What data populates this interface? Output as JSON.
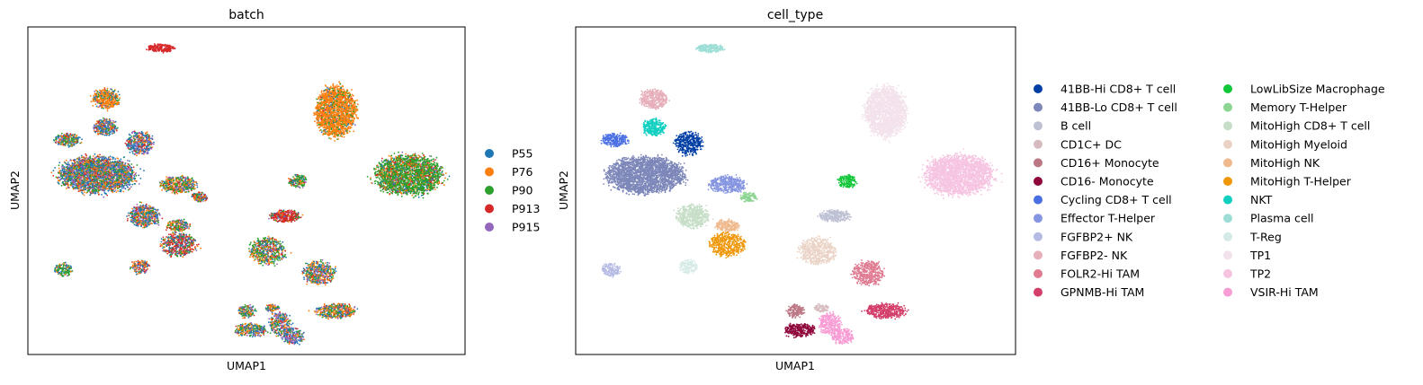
{
  "chart_data": [
    {
      "type": "scatter",
      "title": "batch",
      "xlabel": "UMAP1",
      "ylabel": "UMAP2",
      "legend_position": "right",
      "series": [
        {
          "name": "P55",
          "color": "#1f77b4"
        },
        {
          "name": "P76",
          "color": "#ff7f0e"
        },
        {
          "name": "P90",
          "color": "#2ca02c"
        },
        {
          "name": "P913",
          "color": "#d62728"
        },
        {
          "name": "P915",
          "color": "#9467bd"
        }
      ],
      "clusters": [
        {
          "x": 0.3,
          "y": 0.95,
          "rx": 0.03,
          "ry": 0.012,
          "n": 220,
          "mix": [
            0,
            0,
            0,
            1,
            0
          ]
        },
        {
          "x": 0.17,
          "y": 0.79,
          "rx": 0.03,
          "ry": 0.03,
          "n": 400,
          "mix": [
            0.15,
            0.6,
            0.15,
            0.05,
            0.05
          ]
        },
        {
          "x": 0.17,
          "y": 0.7,
          "rx": 0.025,
          "ry": 0.025,
          "n": 300,
          "mix": [
            0.35,
            0.25,
            0.15,
            0.1,
            0.15
          ]
        },
        {
          "x": 0.08,
          "y": 0.66,
          "rx": 0.03,
          "ry": 0.02,
          "n": 250,
          "mix": [
            0.3,
            0.2,
            0.3,
            0.1,
            0.1
          ]
        },
        {
          "x": 0.25,
          "y": 0.65,
          "rx": 0.03,
          "ry": 0.035,
          "n": 400,
          "mix": [
            0.4,
            0.15,
            0.1,
            0.15,
            0.2
          ]
        },
        {
          "x": 0.15,
          "y": 0.55,
          "rx": 0.085,
          "ry": 0.055,
          "n": 2500,
          "mix": [
            0.35,
            0.2,
            0.2,
            0.1,
            0.15
          ]
        },
        {
          "x": 0.34,
          "y": 0.52,
          "rx": 0.04,
          "ry": 0.025,
          "n": 450,
          "mix": [
            0.2,
            0.3,
            0.3,
            0.1,
            0.1
          ]
        },
        {
          "x": 0.39,
          "y": 0.48,
          "rx": 0.018,
          "ry": 0.015,
          "n": 120,
          "mix": [
            0.2,
            0.2,
            0.2,
            0.3,
            0.1
          ]
        },
        {
          "x": 0.26,
          "y": 0.42,
          "rx": 0.035,
          "ry": 0.035,
          "n": 500,
          "mix": [
            0.35,
            0.25,
            0.15,
            0.1,
            0.15
          ]
        },
        {
          "x": 0.34,
          "y": 0.39,
          "rx": 0.025,
          "ry": 0.018,
          "n": 200,
          "mix": [
            0.2,
            0.3,
            0.3,
            0.1,
            0.1
          ]
        },
        {
          "x": 0.34,
          "y": 0.33,
          "rx": 0.04,
          "ry": 0.035,
          "n": 500,
          "mix": [
            0.2,
            0.1,
            0.15,
            0.45,
            0.1
          ]
        },
        {
          "x": 0.25,
          "y": 0.26,
          "rx": 0.02,
          "ry": 0.02,
          "n": 150,
          "mix": [
            0.3,
            0.3,
            0.1,
            0.2,
            0.1
          ]
        },
        {
          "x": 0.07,
          "y": 0.25,
          "rx": 0.02,
          "ry": 0.02,
          "n": 150,
          "mix": [
            0.2,
            0.2,
            0.5,
            0.05,
            0.05
          ]
        },
        {
          "x": 0.71,
          "y": 0.75,
          "rx": 0.045,
          "ry": 0.075,
          "n": 1800,
          "mix": [
            0.05,
            0.8,
            0.12,
            0.02,
            0.01
          ]
        },
        {
          "x": 0.88,
          "y": 0.55,
          "rx": 0.075,
          "ry": 0.06,
          "n": 2200,
          "mix": [
            0.05,
            0.15,
            0.65,
            0.1,
            0.05
          ]
        },
        {
          "x": 0.62,
          "y": 0.53,
          "rx": 0.02,
          "ry": 0.02,
          "n": 150,
          "mix": [
            0.1,
            0.1,
            0.6,
            0.1,
            0.1
          ]
        },
        {
          "x": 0.59,
          "y": 0.42,
          "rx": 0.035,
          "ry": 0.018,
          "n": 300,
          "mix": [
            0.05,
            0.05,
            0.1,
            0.75,
            0.05
          ]
        },
        {
          "x": 0.55,
          "y": 0.31,
          "rx": 0.04,
          "ry": 0.04,
          "n": 550,
          "mix": [
            0.15,
            0.25,
            0.4,
            0.1,
            0.1
          ]
        },
        {
          "x": 0.67,
          "y": 0.24,
          "rx": 0.035,
          "ry": 0.035,
          "n": 450,
          "mix": [
            0.3,
            0.25,
            0.2,
            0.1,
            0.15
          ]
        },
        {
          "x": 0.71,
          "y": 0.12,
          "rx": 0.045,
          "ry": 0.022,
          "n": 450,
          "mix": [
            0.25,
            0.35,
            0.2,
            0.1,
            0.1
          ]
        },
        {
          "x": 0.5,
          "y": 0.12,
          "rx": 0.02,
          "ry": 0.02,
          "n": 150,
          "mix": [
            0.2,
            0.3,
            0.3,
            0.1,
            0.1
          ]
        },
        {
          "x": 0.58,
          "y": 0.08,
          "rx": 0.025,
          "ry": 0.035,
          "n": 300,
          "mix": [
            0.25,
            0.25,
            0.2,
            0.05,
            0.25
          ]
        },
        {
          "x": 0.51,
          "y": 0.06,
          "rx": 0.035,
          "ry": 0.02,
          "n": 300,
          "mix": [
            0.3,
            0.25,
            0.25,
            0.05,
            0.15
          ]
        },
        {
          "x": 0.61,
          "y": 0.04,
          "rx": 0.025,
          "ry": 0.025,
          "n": 220,
          "mix": [
            0.3,
            0.1,
            0.1,
            0.1,
            0.4
          ]
        },
        {
          "x": 0.56,
          "y": 0.13,
          "rx": 0.015,
          "ry": 0.012,
          "n": 80,
          "mix": [
            0.2,
            0.3,
            0.2,
            0.1,
            0.2
          ]
        }
      ]
    },
    {
      "type": "scatter",
      "title": "cell_type",
      "xlabel": "UMAP1",
      "ylabel": "UMAP2",
      "legend_position": "right",
      "legend_columns": 2,
      "series": [
        {
          "name": "41BB-Hi CD8+ T cell",
          "color": "#023fa5"
        },
        {
          "name": "41BB-Lo CD8+ T cell",
          "color": "#7d87b9"
        },
        {
          "name": "B cell",
          "color": "#bec1d4"
        },
        {
          "name": "CD1C+ DC",
          "color": "#d6bcc0"
        },
        {
          "name": "CD16+ Monocyte",
          "color": "#bb7784"
        },
        {
          "name": "CD16- Monocyte",
          "color": "#8e063b"
        },
        {
          "name": "Cycling CD8+ T cell",
          "color": "#4a6fe3"
        },
        {
          "name": "Effector T-Helper",
          "color": "#8595e1"
        },
        {
          "name": "FGFBP2+ NK",
          "color": "#b5bbe3"
        },
        {
          "name": "FGFBP2- NK",
          "color": "#e6afb9"
        },
        {
          "name": "FOLR2-Hi TAM",
          "color": "#e07b91"
        },
        {
          "name": "GPNMB-Hi TAM",
          "color": "#d33f6a"
        },
        {
          "name": "LowLibSize Macrophage",
          "color": "#11c638"
        },
        {
          "name": "Memory T-Helper",
          "color": "#8dd593"
        },
        {
          "name": "MitoHigh CD8+ T cell",
          "color": "#c6dec7"
        },
        {
          "name": "MitoHigh Myeloid",
          "color": "#ead3c6"
        },
        {
          "name": "MitoHigh NK",
          "color": "#f0b98d"
        },
        {
          "name": "MitoHigh T-Helper",
          "color": "#ef9708"
        },
        {
          "name": "NKT",
          "color": "#0fcfc0"
        },
        {
          "name": "Plasma cell",
          "color": "#9cded6"
        },
        {
          "name": "T-Reg",
          "color": "#d5eae7"
        },
        {
          "name": "TP1",
          "color": "#f3e1eb"
        },
        {
          "name": "TP2",
          "color": "#f6c4e1"
        },
        {
          "name": "VSIR-Hi TAM",
          "color": "#f79cd4"
        }
      ],
      "clusters": [
        {
          "x": 0.3,
          "y": 0.95,
          "rx": 0.03,
          "ry": 0.012,
          "n": 220,
          "cat": 19
        },
        {
          "x": 0.17,
          "y": 0.79,
          "rx": 0.03,
          "ry": 0.03,
          "n": 400,
          "cat": 9
        },
        {
          "x": 0.17,
          "y": 0.7,
          "rx": 0.025,
          "ry": 0.025,
          "n": 300,
          "cat": 18
        },
        {
          "x": 0.08,
          "y": 0.66,
          "rx": 0.03,
          "ry": 0.02,
          "n": 250,
          "cat": 6
        },
        {
          "x": 0.25,
          "y": 0.65,
          "rx": 0.03,
          "ry": 0.035,
          "n": 400,
          "cat": 0
        },
        {
          "x": 0.15,
          "y": 0.55,
          "rx": 0.085,
          "ry": 0.055,
          "n": 2500,
          "cat": 1
        },
        {
          "x": 0.34,
          "y": 0.52,
          "rx": 0.04,
          "ry": 0.025,
          "n": 450,
          "cat": 7
        },
        {
          "x": 0.39,
          "y": 0.48,
          "rx": 0.018,
          "ry": 0.015,
          "n": 120,
          "cat": 13
        },
        {
          "x": 0.26,
          "y": 0.42,
          "rx": 0.035,
          "ry": 0.035,
          "n": 500,
          "cat": 14
        },
        {
          "x": 0.34,
          "y": 0.39,
          "rx": 0.025,
          "ry": 0.018,
          "n": 200,
          "cat": 16
        },
        {
          "x": 0.34,
          "y": 0.33,
          "rx": 0.04,
          "ry": 0.035,
          "n": 500,
          "cat": 17
        },
        {
          "x": 0.25,
          "y": 0.26,
          "rx": 0.02,
          "ry": 0.02,
          "n": 150,
          "cat": 20
        },
        {
          "x": 0.07,
          "y": 0.25,
          "rx": 0.02,
          "ry": 0.02,
          "n": 150,
          "cat": 8
        },
        {
          "x": 0.71,
          "y": 0.75,
          "rx": 0.045,
          "ry": 0.075,
          "n": 1800,
          "cat": 21
        },
        {
          "x": 0.88,
          "y": 0.55,
          "rx": 0.075,
          "ry": 0.06,
          "n": 2200,
          "cat": 22
        },
        {
          "x": 0.62,
          "y": 0.53,
          "rx": 0.02,
          "ry": 0.02,
          "n": 150,
          "cat": 12
        },
        {
          "x": 0.59,
          "y": 0.42,
          "rx": 0.035,
          "ry": 0.018,
          "n": 300,
          "cat": 2
        },
        {
          "x": 0.55,
          "y": 0.31,
          "rx": 0.04,
          "ry": 0.04,
          "n": 550,
          "cat": 15
        },
        {
          "x": 0.67,
          "y": 0.24,
          "rx": 0.035,
          "ry": 0.035,
          "n": 450,
          "cat": 10
        },
        {
          "x": 0.71,
          "y": 0.12,
          "rx": 0.045,
          "ry": 0.022,
          "n": 450,
          "cat": 11
        },
        {
          "x": 0.5,
          "y": 0.12,
          "rx": 0.02,
          "ry": 0.02,
          "n": 150,
          "cat": 4
        },
        {
          "x": 0.58,
          "y": 0.08,
          "rx": 0.025,
          "ry": 0.035,
          "n": 300,
          "cat": 23
        },
        {
          "x": 0.51,
          "y": 0.06,
          "rx": 0.035,
          "ry": 0.02,
          "n": 300,
          "cat": 5
        },
        {
          "x": 0.61,
          "y": 0.04,
          "rx": 0.025,
          "ry": 0.025,
          "n": 220,
          "cat": 23
        },
        {
          "x": 0.56,
          "y": 0.13,
          "rx": 0.015,
          "ry": 0.012,
          "n": 80,
          "cat": 3
        }
      ]
    }
  ]
}
